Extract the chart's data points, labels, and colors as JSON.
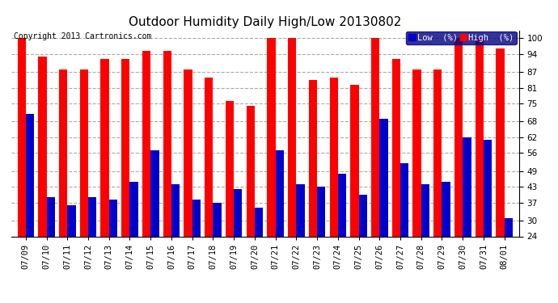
{
  "title": "Outdoor Humidity Daily High/Low 20130802",
  "copyright": "Copyright 2013 Cartronics.com",
  "legend_low": "Low  (%)",
  "legend_high": "High  (%)",
  "dates": [
    "07/09",
    "07/10",
    "07/11",
    "07/12",
    "07/13",
    "07/14",
    "07/15",
    "07/16",
    "07/17",
    "07/18",
    "07/19",
    "07/20",
    "07/21",
    "07/22",
    "07/23",
    "07/24",
    "07/25",
    "07/26",
    "07/27",
    "07/28",
    "07/29",
    "07/30",
    "07/31",
    "08/01"
  ],
  "high": [
    100,
    93,
    88,
    88,
    92,
    92,
    95,
    95,
    88,
    85,
    76,
    74,
    100,
    100,
    84,
    85,
    82,
    100,
    92,
    88,
    88,
    100,
    100,
    96
  ],
  "low": [
    71,
    39,
    36,
    39,
    38,
    45,
    57,
    44,
    38,
    37,
    42,
    35,
    57,
    44,
    43,
    48,
    40,
    69,
    52,
    44,
    45,
    62,
    61,
    31
  ],
  "bar_width": 0.4,
  "high_color": "#ff0000",
  "low_color": "#0000cc",
  "background_color": "#ffffff",
  "grid_color": "#aaaaaa",
  "ylim_min": 24,
  "ylim_max": 103,
  "yticks": [
    24,
    30,
    37,
    43,
    49,
    56,
    62,
    68,
    75,
    81,
    87,
    94,
    100
  ],
  "title_fontsize": 11,
  "tick_fontsize": 7.5,
  "legend_fontsize": 7.5,
  "copyright_fontsize": 7
}
